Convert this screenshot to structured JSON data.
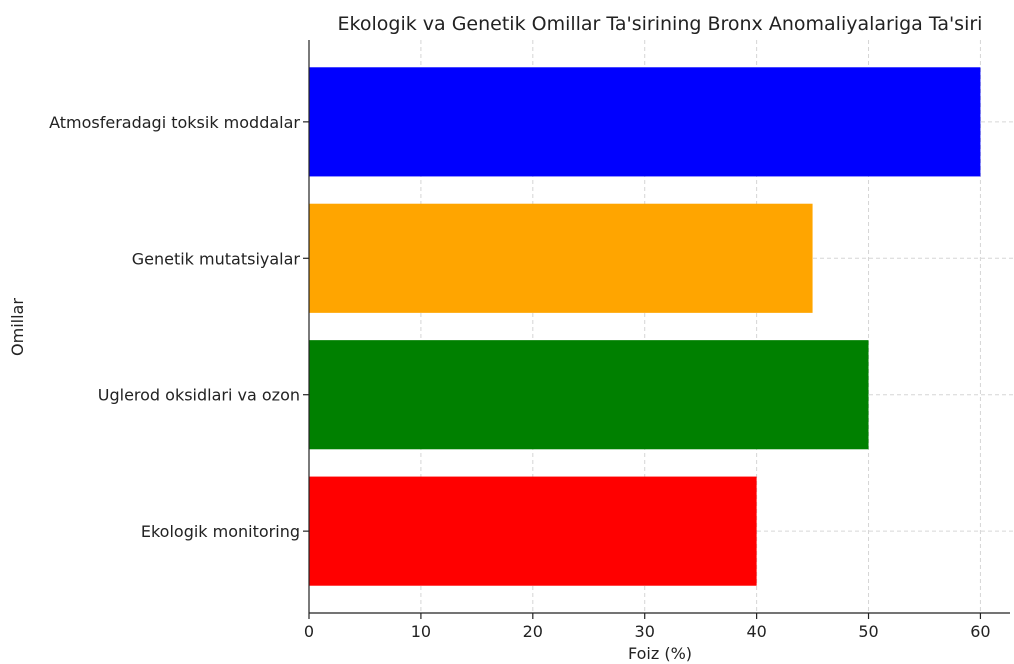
{
  "chart_data": {
    "type": "bar",
    "orientation": "horizontal",
    "title": "Ekologik va Genetik Omillar Ta'sirining Bronx Anomaliyalariga Ta'siri",
    "xlabel": "Foiz (%)",
    "ylabel": "Omillar",
    "xlim": [
      0,
      63
    ],
    "xticks": [
      "0",
      "10",
      "20",
      "30",
      "40",
      "50",
      "60"
    ],
    "grid": true,
    "categories": [
      "Ekologik monitoring",
      "Uglerod oksidlari va ozon",
      "Genetik mutatsiyalar",
      "Atmosferadagi toksik moddalar"
    ],
    "values": [
      40,
      50,
      45,
      60
    ],
    "colors": [
      "#ff0000",
      "#008000",
      "#ffa500",
      "#0000ff"
    ]
  }
}
